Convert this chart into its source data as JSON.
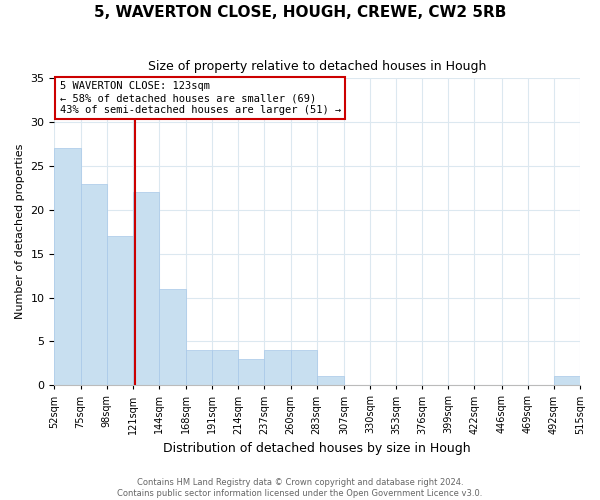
{
  "title": "5, WAVERTON CLOSE, HOUGH, CREWE, CW2 5RB",
  "subtitle": "Size of property relative to detached houses in Hough",
  "xlabel": "Distribution of detached houses by size in Hough",
  "ylabel": "Number of detached properties",
  "bar_color": "#c8dff0",
  "bar_edge_color": "#a8c8e8",
  "property_line_color": "#cc0000",
  "property_value": 123,
  "annotation_title": "5 WAVERTON CLOSE: 123sqm",
  "annotation_line1": "← 58% of detached houses are smaller (69)",
  "annotation_line2": "43% of semi-detached houses are larger (51) →",
  "bin_edges": [
    52,
    75,
    98,
    121,
    144,
    168,
    191,
    214,
    237,
    260,
    283,
    307,
    330,
    353,
    376,
    399,
    422,
    446,
    469,
    492,
    515
  ],
  "bin_counts": [
    27,
    23,
    17,
    22,
    11,
    4,
    4,
    3,
    4,
    4,
    1,
    0,
    0,
    0,
    0,
    0,
    0,
    0,
    0,
    1
  ],
  "tick_labels": [
    "52sqm",
    "75sqm",
    "98sqm",
    "121sqm",
    "144sqm",
    "168sqm",
    "191sqm",
    "214sqm",
    "237sqm",
    "260sqm",
    "283sqm",
    "307sqm",
    "330sqm",
    "353sqm",
    "376sqm",
    "399sqm",
    "422sqm",
    "446sqm",
    "469sqm",
    "492sqm",
    "515sqm"
  ],
  "ylim": [
    0,
    35
  ],
  "yticks": [
    0,
    5,
    10,
    15,
    20,
    25,
    30,
    35
  ],
  "footer_line1": "Contains HM Land Registry data © Crown copyright and database right 2024.",
  "footer_line2": "Contains public sector information licensed under the Open Government Licence v3.0.",
  "bg_color": "#ffffff",
  "grid_color": "#dce8f0",
  "annotation_box_color": "#ffffff",
  "annotation_box_edge": "#cc0000"
}
